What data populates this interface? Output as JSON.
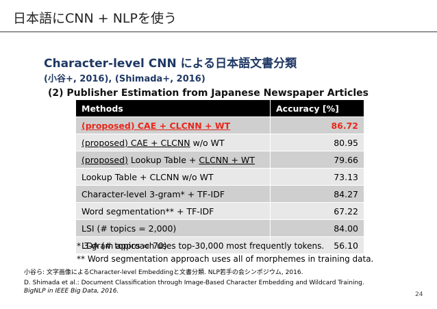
{
  "slide": {
    "title": "日本語にCNN + NLPを使う",
    "heading": "Character-level CNN による日本語文書分類",
    "authors": "(小谷+, 2016), (Shimada+, 2016)",
    "subheading": "(2) Publisher Estimation from Japanese Newspaper Articles",
    "page_number": "24"
  },
  "table": {
    "headers": {
      "method": "Methods",
      "accuracy": "Accuracy [%]"
    },
    "rows": [
      {
        "method_underlined": "(proposed) CAE + CLCNN + WT",
        "method_rest": "",
        "accuracy": "86.72"
      },
      {
        "method_underlined": "(proposed) CAE + CLCNN",
        "method_rest": " w/o WT",
        "accuracy": "80.95"
      },
      {
        "method_prefix": "(proposed)",
        "method_mid": " Lookup Table + ",
        "method_suffix": "CLCNN + WT",
        "accuracy": "79.66"
      },
      {
        "method": "Lookup Table + CLCNN w/o WT",
        "accuracy": "73.13"
      },
      {
        "method": "Character-level 3-gram* + TF-IDF",
        "accuracy": "84.27"
      },
      {
        "method": "Word segmentation** + TF-IDF",
        "accuracy": "67.22"
      },
      {
        "method": "LSI (# topics = 2,000)",
        "accuracy": "84.00"
      },
      {
        "method": "LDA (# topics = 70)",
        "accuracy": "56.10"
      }
    ]
  },
  "footnotes": {
    "note1": "*  3-gram approach uses top-30,000 most frequently tokens.",
    "note2": "** Word segmentation approach uses all of morphemes in training data."
  },
  "references": {
    "ref1": "小谷ら: 文字画像によるCharacter-level Embeddingと文書分類. NLP若手の会シンポジウム, 2016.",
    "ref2": "D. Shimada et al.: Document Classification through Image-Based Character Embedding and Wildcard Training.",
    "ref3": "BigNLP in IEEE Big Data, 2016."
  },
  "colors": {
    "heading": "#1f3864",
    "highlight": "#e8271b",
    "header_bg": "#000000",
    "row_dark": "#cfcfcf",
    "row_light": "#e8e8e8"
  }
}
